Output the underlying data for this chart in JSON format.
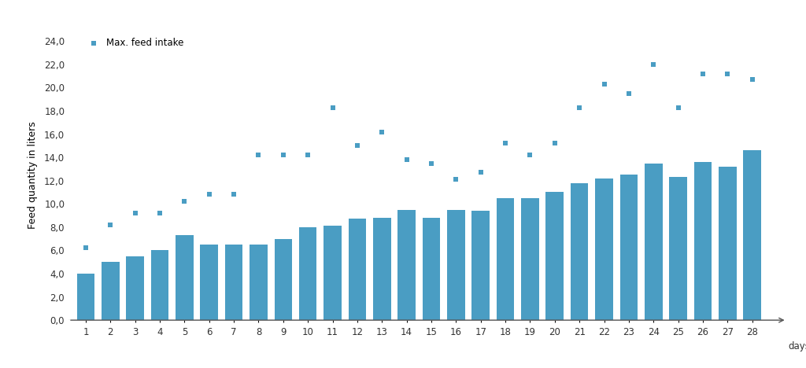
{
  "days": [
    1,
    2,
    3,
    4,
    5,
    6,
    7,
    8,
    9,
    10,
    11,
    12,
    13,
    14,
    15,
    16,
    17,
    18,
    19,
    20,
    21,
    22,
    23,
    24,
    25,
    26,
    27,
    28
  ],
  "bar_values": [
    4.0,
    5.0,
    5.5,
    6.0,
    7.3,
    6.5,
    6.5,
    6.5,
    7.0,
    8.0,
    8.1,
    8.7,
    8.8,
    9.5,
    8.8,
    9.5,
    9.4,
    10.5,
    10.5,
    11.0,
    11.8,
    12.2,
    12.5,
    13.5,
    12.3,
    13.6,
    13.2,
    14.6
  ],
  "scatter_days": [
    1,
    2,
    3,
    4,
    5,
    6,
    7,
    8,
    9,
    10,
    11,
    12,
    13,
    14,
    15,
    16,
    17,
    18,
    19,
    20,
    21,
    22,
    23,
    24,
    25,
    26,
    27,
    28
  ],
  "scatter_values": [
    6.2,
    8.2,
    9.2,
    9.2,
    10.2,
    10.8,
    10.8,
    14.2,
    14.2,
    14.2,
    18.3,
    15.0,
    16.2,
    13.8,
    13.5,
    12.1,
    12.7,
    15.2,
    14.2,
    15.2,
    18.3,
    20.3,
    19.5,
    22.0,
    18.3,
    21.2,
    21.2,
    20.7
  ],
  "bar_color": "#4a9dc3",
  "scatter_color": "#4a9dc3",
  "ylabel": "Feed quantity in liters",
  "xlabel_end": "days",
  "ylim": [
    0,
    25
  ],
  "yticks": [
    0.0,
    2.0,
    4.0,
    6.0,
    8.0,
    10.0,
    12.0,
    14.0,
    16.0,
    18.0,
    20.0,
    22.0,
    24.0
  ],
  "ytick_labels": [
    "0,0",
    "2,0",
    "4,0",
    "6,0",
    "8,0",
    "10,0",
    "12,0",
    "14,0",
    "16,0",
    "18,0",
    "20,0",
    "22,0",
    "24,0"
  ],
  "legend_label": "Max. feed intake",
  "background_color": "#ffffff",
  "axis_fontsize": 9,
  "tick_fontsize": 8.5
}
